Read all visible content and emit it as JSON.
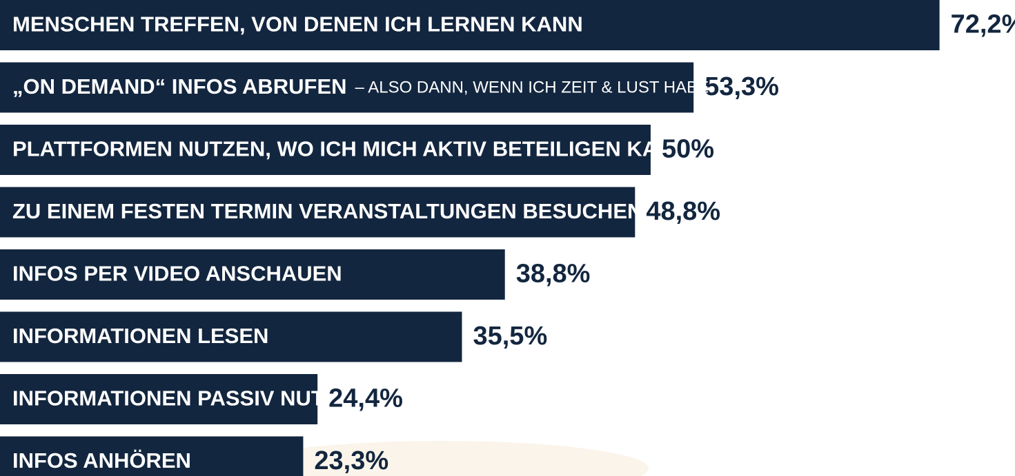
{
  "chart_data": {
    "type": "bar",
    "orientation": "horizontal",
    "categories": [
      "MENSCHEN TREFFEN, VON DENEN ICH LERNEN KANN",
      "„ON DEMAND“ INFOS ABRUFEN",
      "PLATTFORMEN NUTZEN, WO ICH MICH AKTIV BETEILIGEN KANN",
      "ZU EINEM FESTEN TERMIN VERANSTALTUNGEN BESUCHEN",
      "INFOS PER VIDEO ANSCHAUEN",
      "INFORMATIONEN LESEN",
      "INFORMATIONEN PASSIV NUTZEN",
      "INFOS ANHÖREN"
    ],
    "annotations": [
      {
        "category": 1,
        "text": "– ALSO DANN, WENN ICH ZEIT & LUST HABE"
      }
    ],
    "values": [
      72.2,
      53.3,
      50,
      48.8,
      38.8,
      35.5,
      24.4,
      23.3
    ],
    "value_labels": [
      "72,2%",
      "53,3%",
      "50%",
      "48,8%",
      "38,8%",
      "35,5%",
      "24,4%",
      "23,3%"
    ],
    "color": "#13263f",
    "xlim": [
      0,
      78
    ]
  }
}
